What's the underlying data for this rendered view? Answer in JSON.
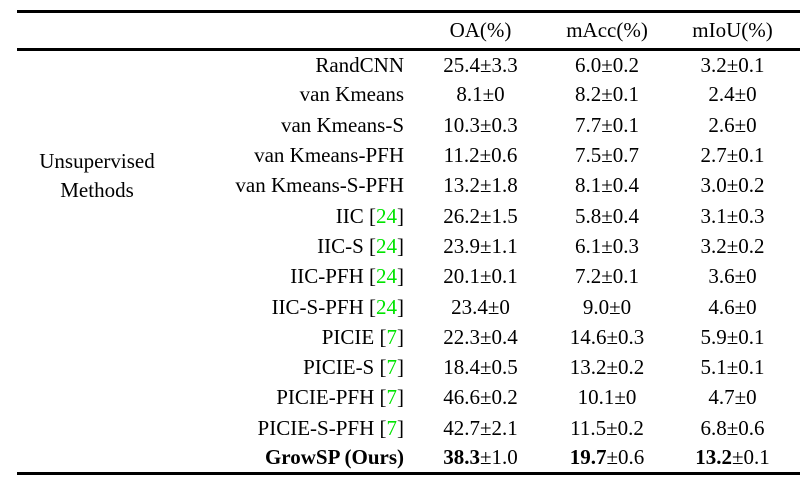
{
  "colors": {
    "background": "#ffffff",
    "text": "#000000",
    "citation_link": "#00e400"
  },
  "table": {
    "group_label": [
      "Unsupervised",
      "Methods"
    ],
    "columns": [
      "OA(%)",
      "mAcc(%)",
      "mIoU(%)"
    ],
    "rows": [
      {
        "method": "RandCNN",
        "cite": null,
        "bold": false,
        "oa": [
          "25.4",
          "±3.3"
        ],
        "macc": [
          "6.0",
          "±0.2"
        ],
        "miou": [
          "3.2",
          "±0.1"
        ]
      },
      {
        "method": "van Kmeans",
        "cite": null,
        "bold": false,
        "oa": [
          "8.1",
          "±0"
        ],
        "macc": [
          "8.2",
          "±0.1"
        ],
        "miou": [
          "2.4",
          "±0"
        ]
      },
      {
        "method": "van Kmeans-S",
        "cite": null,
        "bold": false,
        "oa": [
          "10.3",
          "±0.3"
        ],
        "macc": [
          "7.7",
          "±0.1"
        ],
        "miou": [
          "2.6",
          "±0"
        ]
      },
      {
        "method": "van Kmeans-PFH",
        "cite": null,
        "bold": false,
        "oa": [
          "11.2",
          "±0.6"
        ],
        "macc": [
          "7.5",
          "±0.7"
        ],
        "miou": [
          "2.7",
          "±0.1"
        ]
      },
      {
        "method": "van Kmeans-S-PFH",
        "cite": null,
        "bold": false,
        "oa": [
          "13.2",
          "±1.8"
        ],
        "macc": [
          "8.1",
          "±0.4"
        ],
        "miou": [
          "3.0",
          "±0.2"
        ]
      },
      {
        "method": "IIC",
        "cite": "24",
        "bold": false,
        "oa": [
          "26.2",
          "±1.5"
        ],
        "macc": [
          "5.8",
          "±0.4"
        ],
        "miou": [
          "3.1",
          "±0.3"
        ]
      },
      {
        "method": "IIC-S",
        "cite": "24",
        "bold": false,
        "oa": [
          "23.9",
          "±1.1"
        ],
        "macc": [
          "6.1",
          "±0.3"
        ],
        "miou": [
          "3.2",
          "±0.2"
        ]
      },
      {
        "method": "IIC-PFH",
        "cite": "24",
        "bold": false,
        "oa": [
          "20.1",
          "±0.1"
        ],
        "macc": [
          "7.2",
          "±0.1"
        ],
        "miou": [
          "3.6",
          "±0"
        ]
      },
      {
        "method": "IIC-S-PFH",
        "cite": "24",
        "bold": false,
        "oa": [
          "23.4",
          "±0"
        ],
        "macc": [
          "9.0",
          "±0"
        ],
        "miou": [
          "4.6",
          "±0"
        ]
      },
      {
        "method": "PICIE",
        "cite": "7",
        "bold": false,
        "oa": [
          "22.3",
          "±0.4"
        ],
        "macc": [
          "14.6",
          "±0.3"
        ],
        "miou": [
          "5.9",
          "±0.1"
        ]
      },
      {
        "method": "PICIE-S",
        "cite": "7",
        "bold": false,
        "oa": [
          "18.4",
          "±0.5"
        ],
        "macc": [
          "13.2",
          "±0.2"
        ],
        "miou": [
          "5.1",
          "±0.1"
        ]
      },
      {
        "method": "PICIE-PFH",
        "cite": "7",
        "bold": false,
        "oa": [
          "46.6",
          "±0.2"
        ],
        "macc": [
          "10.1",
          "±0"
        ],
        "miou": [
          "4.7",
          "±0"
        ]
      },
      {
        "method": "PICIE-S-PFH",
        "cite": "7",
        "bold": false,
        "oa": [
          "42.7",
          "±2.1"
        ],
        "macc": [
          "11.5",
          "±0.2"
        ],
        "miou": [
          "6.8",
          "±0.6"
        ]
      },
      {
        "method": "GrowSP (Ours)",
        "cite": null,
        "bold": true,
        "oa": [
          "38.3",
          "±1.0"
        ],
        "macc": [
          "19.7",
          "±0.6"
        ],
        "miou": [
          "13.2",
          "±0.1"
        ]
      }
    ]
  }
}
